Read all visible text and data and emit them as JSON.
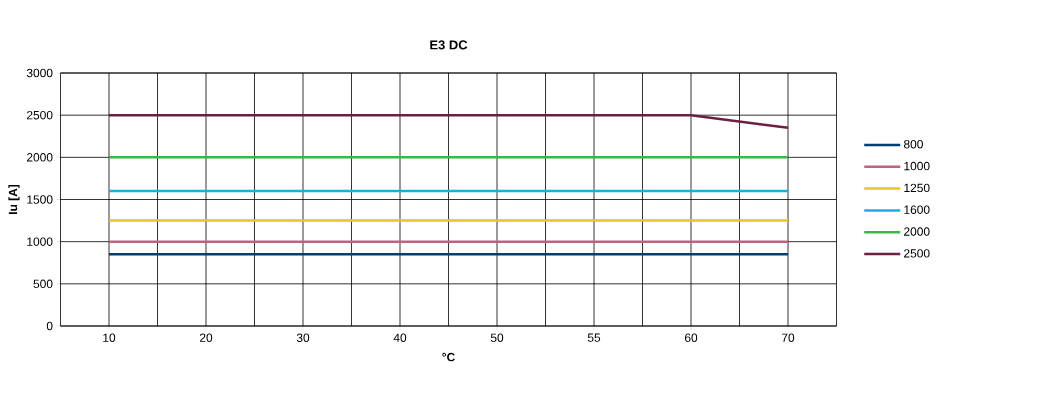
{
  "chart_data": {
    "type": "line",
    "title": "E3 DC",
    "xlabel": "°C",
    "ylabel": "Iu [A]",
    "categories": [
      "10",
      "20",
      "30",
      "40",
      "50",
      "55",
      "60",
      "70"
    ],
    "series": [
      {
        "name": "800",
        "color": "#003f72",
        "values": [
          850,
          850,
          850,
          850,
          850,
          850,
          850,
          850
        ]
      },
      {
        "name": "1000",
        "color": "#c7607f",
        "values": [
          1000,
          1000,
          1000,
          1000,
          1000,
          1000,
          1000,
          1000
        ]
      },
      {
        "name": "1250",
        "color": "#e6c52a",
        "values": [
          1250,
          1250,
          1250,
          1250,
          1250,
          1250,
          1250,
          1250
        ]
      },
      {
        "name": "1600",
        "color": "#1aaee0",
        "values": [
          1600,
          1600,
          1600,
          1600,
          1600,
          1600,
          1600,
          1600
        ]
      },
      {
        "name": "2000",
        "color": "#3db54a",
        "values": [
          2000,
          2000,
          2000,
          2000,
          2000,
          2000,
          2000,
          2000
        ]
      },
      {
        "name": "2500",
        "color": "#6d1e44",
        "values": [
          2500,
          2500,
          2500,
          2500,
          2500,
          2500,
          2500,
          2350
        ]
      }
    ],
    "ylim": [
      0,
      3000
    ],
    "yticks": [
      0,
      500,
      1000,
      1500,
      2000,
      2500,
      3000
    ],
    "grid": true,
    "legend": "right",
    "marker": "none",
    "line_style": "solid"
  }
}
